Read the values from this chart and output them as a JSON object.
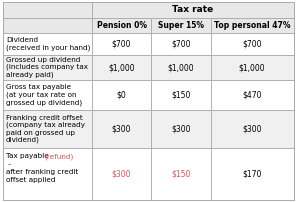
{
  "title": "Tax rate",
  "col_headers": [
    "",
    "Pension 0%",
    "Super 15%",
    "Top personal 47%"
  ],
  "row_labels": [
    "Dividend\n(received in your hand)",
    "Grossed up dividend\n(includes company tax\nalready paid)",
    "Gross tax payable\n(at your tax rate on\ngrossed up dividend)",
    "Franking credit offset\n(company tax already\npaid on grossed up\ndividend)",
    "Tax payable/(refund) -\nafter franking credit\noffset applied"
  ],
  "values": [
    [
      "$700",
      "$700",
      "$700"
    ],
    [
      "$1,000",
      "$1,000",
      "$1,000"
    ],
    [
      "$0",
      "$150",
      "$470"
    ],
    [
      "$300",
      "$300",
      "$300"
    ],
    [
      "$300",
      "$150",
      "$170"
    ]
  ],
  "value_colors": [
    [
      "black",
      "black",
      "black"
    ],
    [
      "black",
      "black",
      "black"
    ],
    [
      "black",
      "black",
      "black"
    ],
    [
      "black",
      "black",
      "black"
    ],
    [
      "#e05252",
      "#e05252",
      "black"
    ]
  ],
  "header_bg": "#e8e8e8",
  "row_bg_white": "#ffffff",
  "row_bg_alt": "#f0f0f0",
  "border_color": "#aaaaaa",
  "title_fontsize": 6.5,
  "cell_fontsize": 5.2,
  "header_fontsize": 5.5,
  "red_color": "#e05252"
}
